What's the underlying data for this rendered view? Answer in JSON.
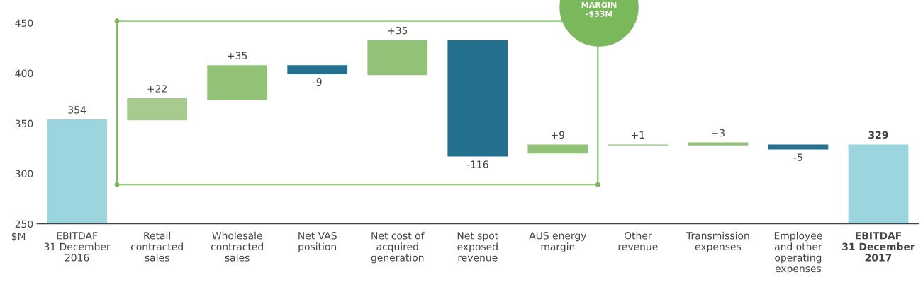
{
  "chart_data": {
    "type": "bar",
    "ylabel": "$M",
    "categories": [
      "EBITDAF\n31 December\n2016",
      "Retail\ncontracted\nsales",
      "Wholesale\ncontracted\nsales",
      "Net VAS\nposition",
      "Net cost of\nacquired\ngeneration",
      "Net spot\nexposed\nrevenue",
      "AUS energy\nmargin",
      "Other\nrevenue",
      "Transmission\nexpenses",
      "Employee\nand other\noperating\nexpenses",
      "EBITDAF\n31 December\n2017"
    ],
    "values": [
      354,
      22,
      35,
      -9,
      35,
      -116,
      9,
      1,
      3,
      -5,
      329
    ],
    "base": [
      null,
      353,
      373,
      408,
      398,
      433,
      320,
      328,
      328,
      329,
      null
    ],
    "value_labels": [
      "354",
      "+22",
      "+35",
      "-9",
      "+35",
      "-116",
      "+9",
      "+1",
      "+3",
      "-5",
      "329"
    ],
    "colors": [
      "#9dd5de",
      "#a7cb8f",
      "#91c277",
      "#23718f",
      "#91c277",
      "#23718f",
      "#91c277",
      "#91c277",
      "#91c277",
      "#23718f",
      "#9dd5de"
    ],
    "ylim": [
      250,
      450
    ],
    "yticks": [
      250,
      300,
      350,
      400,
      450
    ],
    "annotations": [
      "MARGIN\n-$33M"
    ],
    "grid": false
  }
}
